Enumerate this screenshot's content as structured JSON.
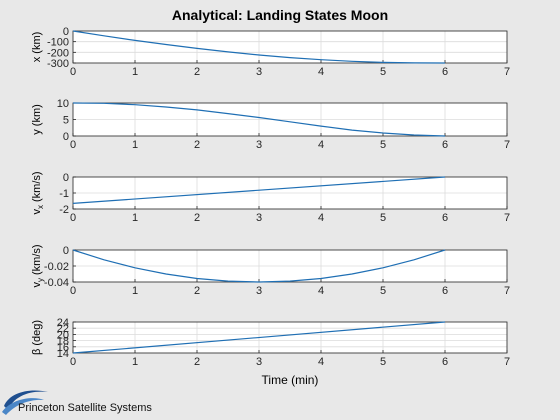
{
  "figure": {
    "title": "Analytical: Landing States Moon",
    "xlabel": "Time (min)",
    "line_color": "#1f6fb4",
    "background": "#e8e8e8"
  },
  "footer": {
    "company": "Princeton Satellite Systems",
    "logo_icon": "swoosh-logo-icon",
    "logo_color": "#1f4f8f"
  },
  "chart_data": [
    {
      "type": "line",
      "ylabel": "x (km)",
      "xlim": [
        0,
        7
      ],
      "ylim": [
        -300,
        0
      ],
      "xticks": [
        0,
        1,
        2,
        3,
        4,
        5,
        6,
        7
      ],
      "yticks": [
        0,
        -100,
        -200,
        -300
      ],
      "x": [
        0,
        0.5,
        1,
        1.5,
        2,
        2.5,
        3,
        3.5,
        4,
        4.5,
        5,
        5.5,
        6
      ],
      "y": [
        0,
        -45,
        -88,
        -127,
        -163,
        -196,
        -225,
        -249,
        -269,
        -284,
        -294,
        -299,
        -300
      ]
    },
    {
      "type": "line",
      "ylabel": "y (km)",
      "xlim": [
        0,
        7
      ],
      "ylim": [
        0,
        10
      ],
      "xticks": [
        0,
        1,
        2,
        3,
        4,
        5,
        6,
        7
      ],
      "yticks": [
        0,
        5,
        10
      ],
      "x": [
        0,
        0.5,
        1,
        1.5,
        2,
        2.5,
        3,
        3.5,
        4,
        4.5,
        5,
        5.5,
        6
      ],
      "y": [
        10,
        9.9,
        9.5,
        8.8,
        7.9,
        6.8,
        5.6,
        4.3,
        3.0,
        1.8,
        0.9,
        0.3,
        0
      ]
    },
    {
      "type": "line",
      "ylabel": "v_x (km/s)",
      "xlim": [
        0,
        7
      ],
      "ylim": [
        -2,
        0
      ],
      "xticks": [
        0,
        1,
        2,
        3,
        4,
        5,
        6,
        7
      ],
      "yticks": [
        0,
        -1,
        -2
      ],
      "x": [
        0,
        6
      ],
      "y": [
        -1.65,
        0
      ]
    },
    {
      "type": "line",
      "ylabel": "v_y (km/s)",
      "xlim": [
        0,
        7
      ],
      "ylim": [
        -0.04,
        0
      ],
      "xticks": [
        0,
        1,
        2,
        3,
        4,
        5,
        6,
        7
      ],
      "yticks": [
        0,
        -0.02,
        -0.04
      ],
      "x": [
        0,
        0.5,
        1,
        1.5,
        2,
        2.5,
        3,
        3.5,
        4,
        4.5,
        5,
        5.5,
        6
      ],
      "y": [
        0,
        -0.0122,
        -0.0222,
        -0.03,
        -0.0356,
        -0.0389,
        -0.04,
        -0.0389,
        -0.0356,
        -0.03,
        -0.0222,
        -0.0122,
        0
      ]
    },
    {
      "type": "line",
      "ylabel": "β (deg)",
      "xlim": [
        0,
        7
      ],
      "ylim": [
        14,
        24
      ],
      "xticks": [
        0,
        1,
        2,
        3,
        4,
        5,
        6,
        7
      ],
      "yticks": [
        14,
        16,
        18,
        20,
        22,
        24
      ],
      "x": [
        0,
        6
      ],
      "y": [
        14,
        24
      ]
    }
  ]
}
